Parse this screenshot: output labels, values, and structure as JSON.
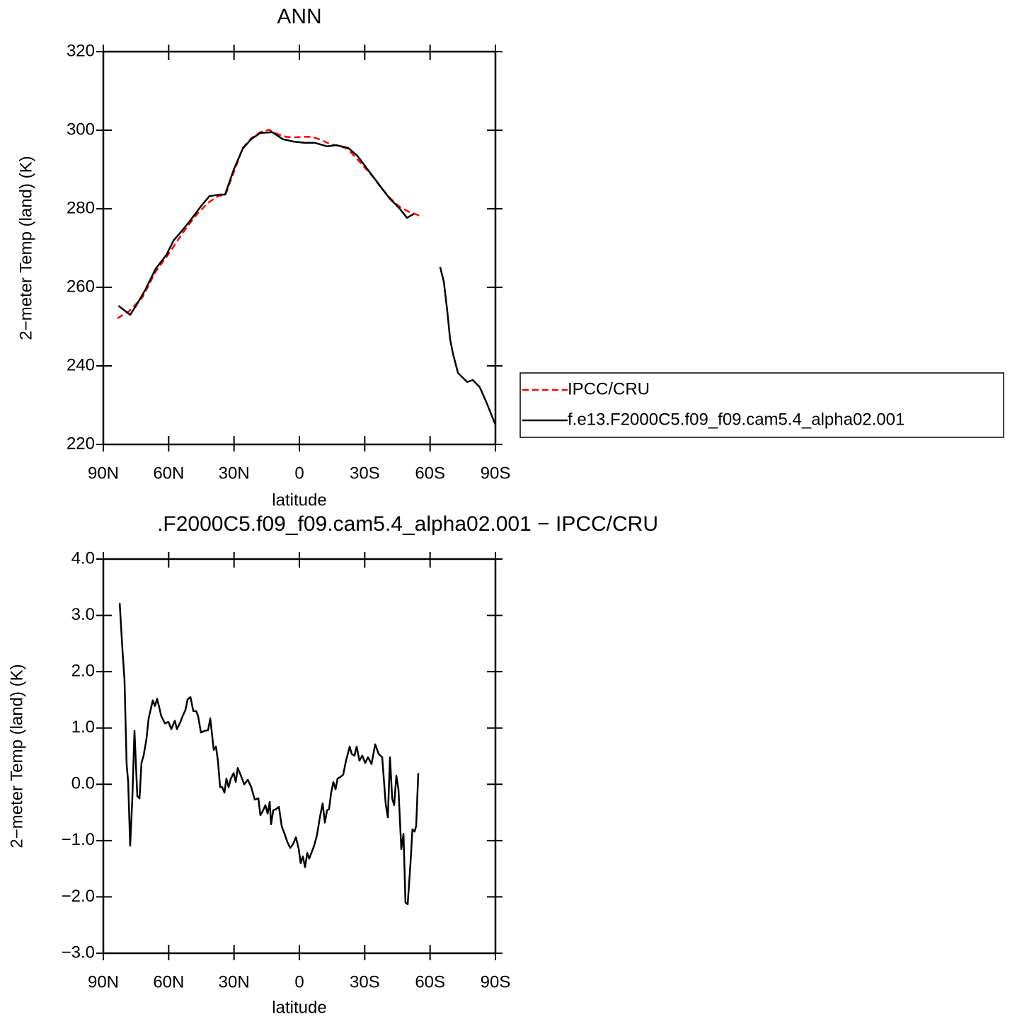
{
  "chart_data": [
    {
      "type": "line",
      "title": "ANN",
      "xlabel": "latitude",
      "ylabel": "2−meter Temp (land) (K)",
      "xlim": [
        90,
        -90
      ],
      "xticks": [
        {
          "value": 90,
          "label": "90N"
        },
        {
          "value": 60,
          "label": "60N"
        },
        {
          "value": 30,
          "label": "30N"
        },
        0,
        {
          "value": -30,
          "label": "30S"
        },
        {
          "value": -60,
          "label": "60S"
        },
        {
          "value": -90,
          "label": "90S"
        }
      ],
      "ylim": [
        220,
        320
      ],
      "yticks": [
        220,
        240,
        260,
        280,
        300,
        320
      ],
      "series": [
        {
          "name": "IPCC/CRU",
          "color": "#ff0000",
          "dash": true,
          "x": [
            83.5,
            78,
            72,
            66,
            60,
            54,
            48,
            42,
            37,
            34,
            30,
            26,
            22,
            18,
            14,
            10,
            6,
            2,
            -2,
            -6,
            -10,
            -14,
            -18,
            -22,
            -26,
            -30,
            -34,
            -38,
            -42,
            -46,
            -50,
            -54,
            -56
          ],
          "values": [
            252.1,
            254,
            257.5,
            264,
            268.5,
            273.5,
            278,
            281.5,
            283.3,
            283.5,
            289.5,
            295.5,
            298,
            299.5,
            300.1,
            299,
            298.3,
            298.2,
            298.3,
            298.3,
            297.5,
            296.5,
            296,
            295.3,
            293,
            290.5,
            288,
            285,
            282.5,
            280.5,
            279.3,
            278.5,
            278
          ]
        },
        {
          "name": "f.e13.F2000C5.f09_f09.cam5.4_alpha02.001",
          "color": "#000000",
          "dash": false,
          "x": [
            83,
            77.7,
            75,
            70.8,
            66,
            61,
            57.8,
            53.6,
            49.7,
            44.8,
            41.3,
            36.7,
            34.1,
            30.2,
            26,
            22,
            17.9,
            12.4,
            7.5,
            2.6,
            -2.3,
            -7.1,
            -12.7,
            -16.9,
            -22.4,
            -26.6,
            -31.5,
            -36.4,
            -41.3,
            -46.1,
            -49.4,
            -52.6,
            -58,
            -64.6,
            -66.3,
            -67.9,
            -69.2,
            -70.5,
            -72.8,
            -77,
            -79.6,
            -82.8,
            -86.1,
            -90
          ],
          "values": [
            255.3,
            253,
            255.3,
            259.3,
            264.7,
            268.3,
            271.9,
            274.6,
            277.3,
            280.9,
            283.2,
            283.6,
            283.6,
            289.9,
            295.3,
            297.8,
            299.3,
            299.5,
            297.7,
            297.1,
            296.8,
            296.8,
            295.9,
            296.2,
            295.5,
            293.5,
            289.9,
            286.3,
            282.7,
            280,
            277.7,
            278.7,
            null,
            265.2,
            261.4,
            253.9,
            246.7,
            243.1,
            238.2,
            235.9,
            236.4,
            234.6,
            230.4,
            225
          ]
        }
      ]
    },
    {
      "type": "line",
      "title": ".F2000C5.f09_f09.cam5.4_alpha02.001 − IPCC/CRU",
      "xlabel": "latitude",
      "ylabel": "2−meter Temp (land) (K)",
      "xlim": [
        90,
        -90
      ],
      "xticks": [
        {
          "value": 90,
          "label": "90N"
        },
        {
          "value": 60,
          "label": "60N"
        },
        {
          "value": 30,
          "label": "30N"
        },
        0,
        {
          "value": -30,
          "label": "30S"
        },
        {
          "value": -60,
          "label": "60S"
        },
        {
          "value": -90,
          "label": "90S"
        }
      ],
      "ylim": [
        -3,
        4
      ],
      "yticks": [
        {
          "value": -3,
          "label": "−3.0"
        },
        {
          "value": -2,
          "label": "−2.0"
        },
        {
          "value": -1,
          "label": "−1.0"
        },
        {
          "value": 0,
          "label": "0.0"
        },
        {
          "value": 1,
          "label": "1.0"
        },
        {
          "value": 2,
          "label": "2.0"
        },
        {
          "value": 3,
          "label": "3.0"
        },
        {
          "value": 4,
          "label": "4.0"
        }
      ],
      "color": "#000000",
      "x": [
        82.5,
        81.2,
        80.3,
        79.3,
        78.6,
        77.7,
        76.7,
        75.7,
        74.4,
        73.4,
        72.5,
        71.5,
        70.2,
        69.2,
        67.3,
        66.3,
        65.3,
        63.4,
        61.7,
        60.1,
        58.8,
        57.2,
        56.2,
        54.6,
        53.6,
        52.3,
        51.3,
        50,
        48.7,
        47.4,
        46.5,
        45.2,
        43.5,
        41.9,
        40.9,
        39.3,
        38.3,
        37.4,
        36.4,
        35.4,
        34.4,
        33.5,
        32.5,
        31.5,
        30.2,
        29.2,
        28.3,
        27,
        25.3,
        23.7,
        22.1,
        20.5,
        18.8,
        17.9,
        16.6,
        15.6,
        14.6,
        13.6,
        13,
        12,
        10.7,
        9.4,
        8.1,
        6.8,
        5.5,
        4.2,
        2.9,
        1.6,
        0.3,
        -0.6,
        -1.6,
        -2.6,
        -3.6,
        -4.5,
        -5.5,
        -6.8,
        -8.1,
        -9.4,
        -10.7,
        -11.7,
        -12.7,
        -13.6,
        -14.6,
        -15.6,
        -16.6,
        -17.5,
        -18.8,
        -20.1,
        -21.4,
        -23.1,
        -24,
        -25.3,
        -26.3,
        -27.6,
        -28.9,
        -30.2,
        -31.5,
        -33.1,
        -34.8,
        -36.4,
        -38,
        -39.6,
        -40.6,
        -41.6,
        -42.6,
        -43.5,
        -44.5,
        -45.5,
        -46.8,
        -47.8,
        -48.7,
        -49.7,
        -51,
        -51.9,
        -52.9,
        -53.6,
        -54.6
      ],
      "values": [
        3.22,
        2.37,
        1.86,
        0.36,
        0.04,
        -1.09,
        -0.27,
        0.95,
        -0.21,
        -0.25,
        0.38,
        0.51,
        0.8,
        1.17,
        1.49,
        1.39,
        1.52,
        1.21,
        1.08,
        1.11,
        0.98,
        1.13,
        0.98,
        1.11,
        1.21,
        1.32,
        1.51,
        1.55,
        1.3,
        1.3,
        1.21,
        0.92,
        0.95,
        0.96,
        1.17,
        0.61,
        0.67,
        0.42,
        -0.05,
        -0.05,
        -0.15,
        0.1,
        -0.05,
        0.1,
        0.2,
        0.04,
        0.29,
        0.17,
        0,
        0.08,
        -0.05,
        -0.27,
        -0.25,
        -0.55,
        -0.46,
        -0.37,
        -0.52,
        -0.31,
        -0.71,
        -0.46,
        -0.44,
        -0.4,
        -0.75,
        -0.88,
        -1.03,
        -1.13,
        -1.06,
        -0.94,
        -1.15,
        -1.4,
        -1.28,
        -1.47,
        -1.22,
        -1.32,
        -1.22,
        -1.09,
        -0.9,
        -0.59,
        -0.34,
        -0.68,
        -0.46,
        -0.44,
        -0.15,
        0.04,
        -0.09,
        0.1,
        0.13,
        0.17,
        0.42,
        0.67,
        0.54,
        0.51,
        0.67,
        0.42,
        0.51,
        0.38,
        0.48,
        0.36,
        0.71,
        0.54,
        0.48,
        -0.34,
        -0.59,
        0.48,
        -0.25,
        -0.37,
        0.15,
        -0.09,
        -1.15,
        -0.88,
        -2.1,
        -2.13,
        -1.4,
        -0.8,
        -0.84,
        -0.74,
        0.2
      ]
    }
  ]
}
